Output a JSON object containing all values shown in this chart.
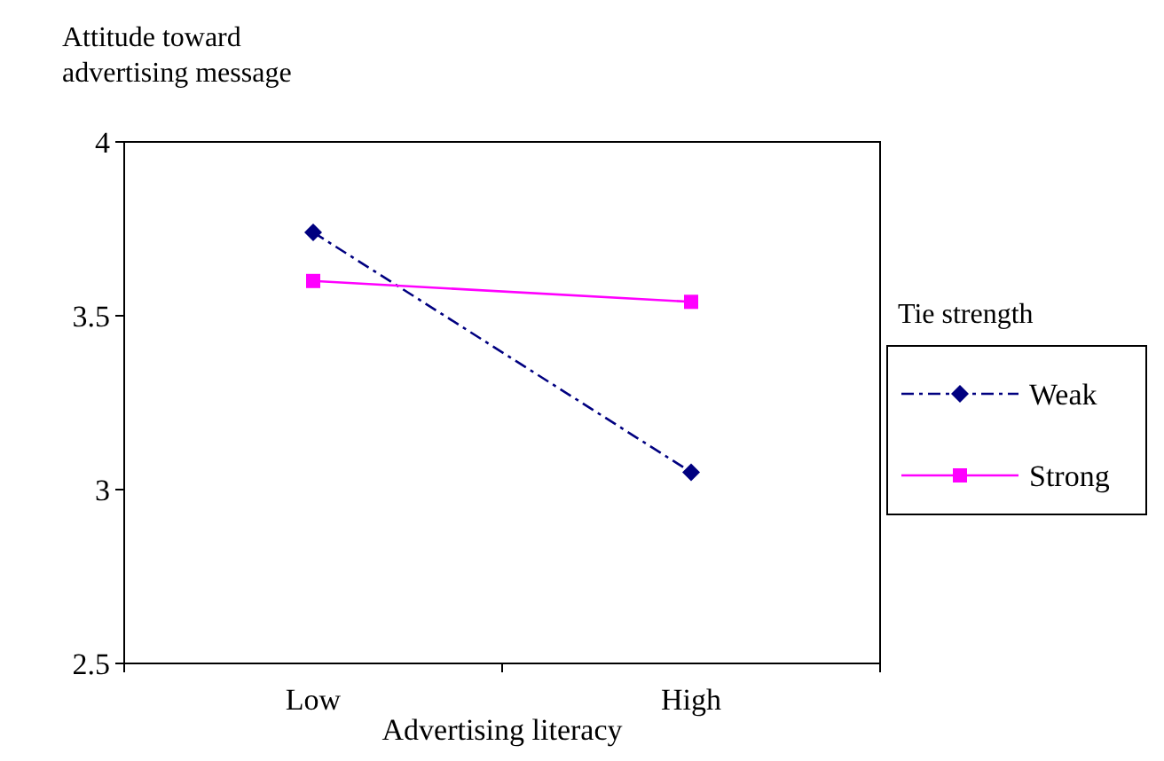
{
  "chart_data": {
    "type": "line",
    "ylabel": "Attitude toward advertising message",
    "xlabel": "Advertising literacy",
    "legend_title": "Tie strength",
    "categories": [
      "Low",
      "High"
    ],
    "ylim": [
      2.5,
      4
    ],
    "yticks": [
      2.5,
      3,
      3.5,
      4
    ],
    "grid": false,
    "legend": "right",
    "series": [
      {
        "name": "Weak",
        "color": "#000080",
        "values": [
          3.74,
          3.05
        ],
        "marker": "diamond",
        "line_style": "dashed"
      },
      {
        "name": "Strong",
        "color": "#ff00ff",
        "values": [
          3.6,
          3.54
        ],
        "marker": "square",
        "line_style": "solid"
      }
    ]
  }
}
